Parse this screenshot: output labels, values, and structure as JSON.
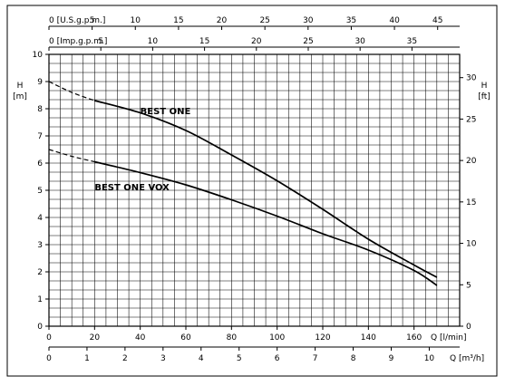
{
  "chart_data": {
    "type": "line",
    "grid": true,
    "x_primary": {
      "label": "Q [l/min]",
      "min": 0,
      "max": 180,
      "ticks": [
        0,
        20,
        40,
        60,
        80,
        100,
        120,
        140,
        160
      ]
    },
    "x_m3h": {
      "label": "Q [m³/h]",
      "min": 0,
      "max": 10.8,
      "ticks": [
        0,
        1,
        2,
        3,
        4,
        5,
        6,
        7,
        8,
        9,
        10
      ]
    },
    "x_usgpm": {
      "label": "[U.S.g.p.m.]",
      "min": 0,
      "max": 47.55,
      "ticks": [
        0,
        5,
        10,
        15,
        20,
        25,
        30,
        35,
        40,
        45
      ]
    },
    "x_impgpm": {
      "label": "[Imp.g.p.m.]",
      "min": 0,
      "max": 39.6,
      "ticks": [
        0,
        5,
        10,
        15,
        20,
        25,
        30,
        35
      ]
    },
    "y_left": {
      "label": "H",
      "unit": "[m]",
      "min": 0,
      "max": 10,
      "ticks": [
        0,
        1,
        2,
        3,
        4,
        5,
        6,
        7,
        8,
        9,
        10
      ]
    },
    "y_right": {
      "label": "H",
      "unit": "[ft]",
      "min": 0,
      "max": 32.81,
      "ticks": [
        0,
        5,
        10,
        15,
        20,
        25,
        30
      ]
    },
    "series": [
      {
        "name": "BEST ONE",
        "dashed_until": 20,
        "x": [
          0,
          10,
          20,
          40,
          60,
          80,
          100,
          120,
          140,
          160,
          170
        ],
        "y": [
          9.0,
          8.6,
          8.3,
          7.85,
          7.2,
          6.3,
          5.35,
          4.3,
          3.2,
          2.25,
          1.8
        ]
      },
      {
        "name": "BEST ONE VOX",
        "dashed_until": 20,
        "x": [
          0,
          10,
          20,
          40,
          60,
          80,
          100,
          120,
          140,
          160,
          170
        ],
        "y": [
          6.5,
          6.25,
          6.05,
          5.65,
          5.2,
          4.65,
          4.05,
          3.4,
          2.8,
          2.05,
          1.5
        ]
      }
    ]
  }
}
